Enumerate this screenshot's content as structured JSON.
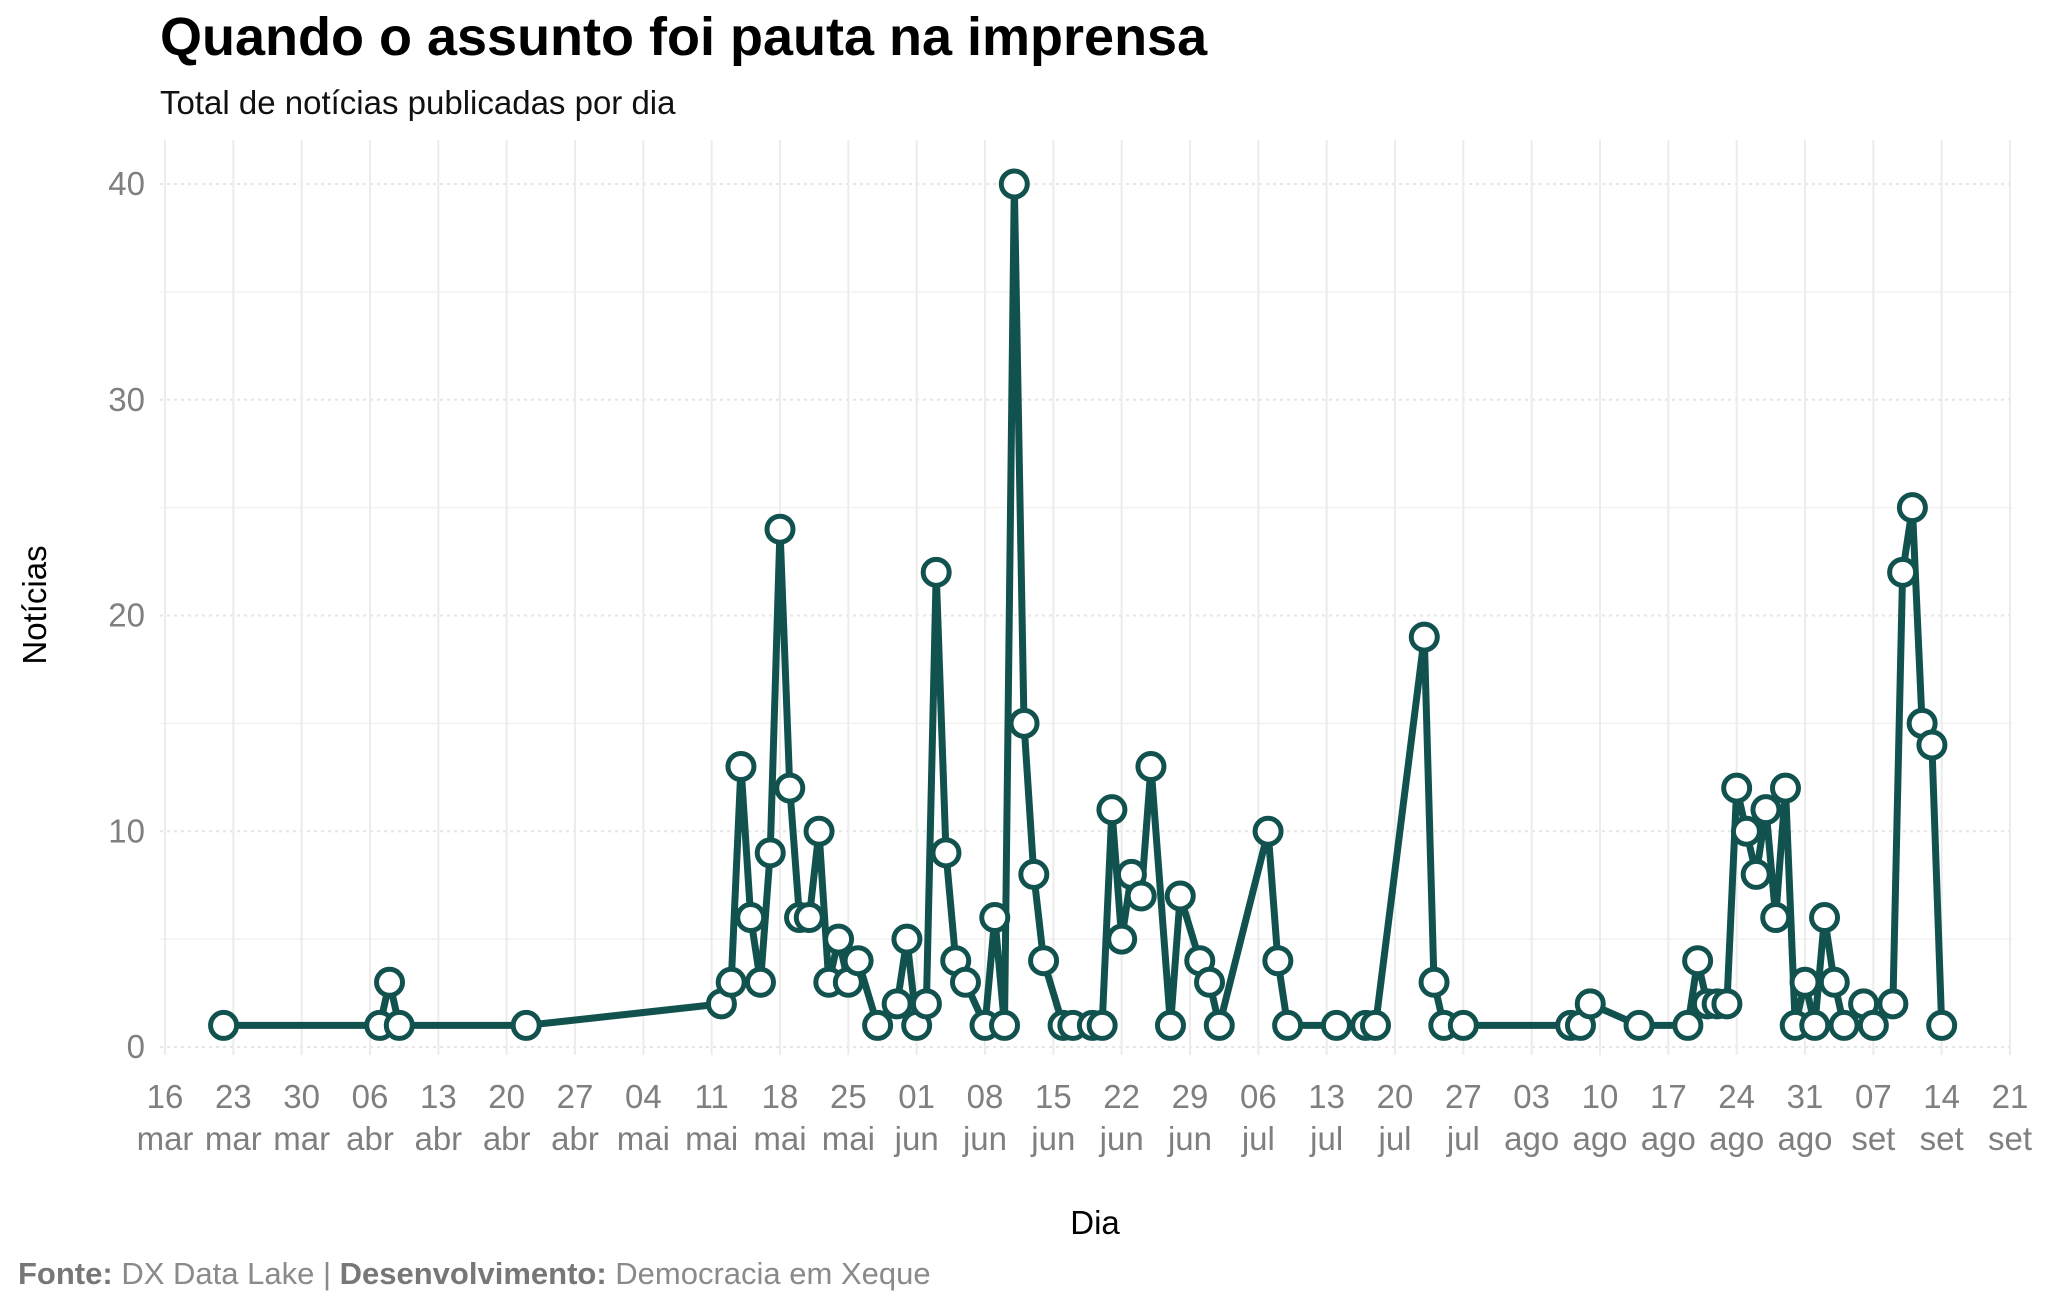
{
  "chart_data": {
    "type": "line",
    "title": "Quando o assunto foi pauta na imprensa",
    "subtitle": "Total de notícias publicadas por dia",
    "xlabel": "Dia",
    "ylabel": "Notícias",
    "ylim": [
      0,
      40
    ],
    "yticks": [
      0,
      10,
      20,
      30,
      40
    ],
    "xticks": [
      {
        "date": "2023-03-16",
        "day": "16",
        "month": "mar"
      },
      {
        "date": "2023-03-23",
        "day": "23",
        "month": "mar"
      },
      {
        "date": "2023-03-30",
        "day": "30",
        "month": "mar"
      },
      {
        "date": "2023-04-06",
        "day": "06",
        "month": "abr"
      },
      {
        "date": "2023-04-13",
        "day": "13",
        "month": "abr"
      },
      {
        "date": "2023-04-20",
        "day": "20",
        "month": "abr"
      },
      {
        "date": "2023-04-27",
        "day": "27",
        "month": "abr"
      },
      {
        "date": "2023-05-04",
        "day": "04",
        "month": "mai"
      },
      {
        "date": "2023-05-11",
        "day": "11",
        "month": "mai"
      },
      {
        "date": "2023-05-18",
        "day": "18",
        "month": "mai"
      },
      {
        "date": "2023-05-25",
        "day": "25",
        "month": "mai"
      },
      {
        "date": "2023-06-01",
        "day": "01",
        "month": "jun"
      },
      {
        "date": "2023-06-08",
        "day": "08",
        "month": "jun"
      },
      {
        "date": "2023-06-15",
        "day": "15",
        "month": "jun"
      },
      {
        "date": "2023-06-22",
        "day": "22",
        "month": "jun"
      },
      {
        "date": "2023-06-29",
        "day": "29",
        "month": "jun"
      },
      {
        "date": "2023-07-06",
        "day": "06",
        "month": "jul"
      },
      {
        "date": "2023-07-13",
        "day": "13",
        "month": "jul"
      },
      {
        "date": "2023-07-20",
        "day": "20",
        "month": "jul"
      },
      {
        "date": "2023-07-27",
        "day": "27",
        "month": "jul"
      },
      {
        "date": "2023-08-03",
        "day": "03",
        "month": "ago"
      },
      {
        "date": "2023-08-10",
        "day": "10",
        "month": "ago"
      },
      {
        "date": "2023-08-17",
        "day": "17",
        "month": "ago"
      },
      {
        "date": "2023-08-24",
        "day": "24",
        "month": "ago"
      },
      {
        "date": "2023-08-31",
        "day": "31",
        "month": "ago"
      },
      {
        "date": "2023-09-07",
        "day": "07",
        "month": "set"
      },
      {
        "date": "2023-09-14",
        "day": "14",
        "month": "set"
      },
      {
        "date": "2023-09-21",
        "day": "21",
        "month": "set"
      }
    ],
    "points": [
      {
        "x": "2023-03-22",
        "y": 1
      },
      {
        "x": "2023-04-07",
        "y": 1
      },
      {
        "x": "2023-04-08",
        "y": 3
      },
      {
        "x": "2023-04-09",
        "y": 1
      },
      {
        "x": "2023-04-22",
        "y": 1
      },
      {
        "x": "2023-05-12",
        "y": 2
      },
      {
        "x": "2023-05-13",
        "y": 3
      },
      {
        "x": "2023-05-14",
        "y": 13
      },
      {
        "x": "2023-05-15",
        "y": 6
      },
      {
        "x": "2023-05-16",
        "y": 3
      },
      {
        "x": "2023-05-17",
        "y": 9
      },
      {
        "x": "2023-05-18",
        "y": 24
      },
      {
        "x": "2023-05-19",
        "y": 12
      },
      {
        "x": "2023-05-20",
        "y": 6
      },
      {
        "x": "2023-05-21",
        "y": 6
      },
      {
        "x": "2023-05-22",
        "y": 10
      },
      {
        "x": "2023-05-23",
        "y": 3
      },
      {
        "x": "2023-05-24",
        "y": 5
      },
      {
        "x": "2023-05-25",
        "y": 3
      },
      {
        "x": "2023-05-26",
        "y": 4
      },
      {
        "x": "2023-05-28",
        "y": 1
      },
      {
        "x": "2023-05-30",
        "y": 2
      },
      {
        "x": "2023-05-31",
        "y": 5
      },
      {
        "x": "2023-06-01",
        "y": 1
      },
      {
        "x": "2023-06-02",
        "y": 2
      },
      {
        "x": "2023-06-03",
        "y": 22
      },
      {
        "x": "2023-06-04",
        "y": 9
      },
      {
        "x": "2023-06-05",
        "y": 4
      },
      {
        "x": "2023-06-06",
        "y": 3
      },
      {
        "x": "2023-06-08",
        "y": 1
      },
      {
        "x": "2023-06-09",
        "y": 6
      },
      {
        "x": "2023-06-10",
        "y": 1
      },
      {
        "x": "2023-06-11",
        "y": 40
      },
      {
        "x": "2023-06-12",
        "y": 15
      },
      {
        "x": "2023-06-13",
        "y": 8
      },
      {
        "x": "2023-06-14",
        "y": 4
      },
      {
        "x": "2023-06-16",
        "y": 1
      },
      {
        "x": "2023-06-17",
        "y": 1
      },
      {
        "x": "2023-06-19",
        "y": 1
      },
      {
        "x": "2023-06-20",
        "y": 1
      },
      {
        "x": "2023-06-21",
        "y": 11
      },
      {
        "x": "2023-06-22",
        "y": 5
      },
      {
        "x": "2023-06-23",
        "y": 8
      },
      {
        "x": "2023-06-24",
        "y": 7
      },
      {
        "x": "2023-06-25",
        "y": 13
      },
      {
        "x": "2023-06-27",
        "y": 1
      },
      {
        "x": "2023-06-28",
        "y": 7
      },
      {
        "x": "2023-06-30",
        "y": 4
      },
      {
        "x": "2023-07-01",
        "y": 3
      },
      {
        "x": "2023-07-02",
        "y": 1
      },
      {
        "x": "2023-07-07",
        "y": 10
      },
      {
        "x": "2023-07-08",
        "y": 4
      },
      {
        "x": "2023-07-09",
        "y": 1
      },
      {
        "x": "2023-07-14",
        "y": 1
      },
      {
        "x": "2023-07-17",
        "y": 1
      },
      {
        "x": "2023-07-18",
        "y": 1
      },
      {
        "x": "2023-07-23",
        "y": 19
      },
      {
        "x": "2023-07-24",
        "y": 3
      },
      {
        "x": "2023-07-25",
        "y": 1
      },
      {
        "x": "2023-07-27",
        "y": 1
      },
      {
        "x": "2023-08-07",
        "y": 1
      },
      {
        "x": "2023-08-08",
        "y": 1
      },
      {
        "x": "2023-08-09",
        "y": 2
      },
      {
        "x": "2023-08-14",
        "y": 1
      },
      {
        "x": "2023-08-19",
        "y": 1
      },
      {
        "x": "2023-08-20",
        "y": 4
      },
      {
        "x": "2023-08-21",
        "y": 2
      },
      {
        "x": "2023-08-22",
        "y": 2
      },
      {
        "x": "2023-08-23",
        "y": 2
      },
      {
        "x": "2023-08-24",
        "y": 12
      },
      {
        "x": "2023-08-25",
        "y": 10
      },
      {
        "x": "2023-08-26",
        "y": 8
      },
      {
        "x": "2023-08-27",
        "y": 11
      },
      {
        "x": "2023-08-28",
        "y": 6
      },
      {
        "x": "2023-08-29",
        "y": 12
      },
      {
        "x": "2023-08-30",
        "y": 1
      },
      {
        "x": "2023-08-31",
        "y": 3
      },
      {
        "x": "2023-09-01",
        "y": 1
      },
      {
        "x": "2023-09-02",
        "y": 6
      },
      {
        "x": "2023-09-03",
        "y": 3
      },
      {
        "x": "2023-09-04",
        "y": 1
      },
      {
        "x": "2023-09-06",
        "y": 2
      },
      {
        "x": "2023-09-07",
        "y": 1
      },
      {
        "x": "2023-09-09",
        "y": 2
      },
      {
        "x": "2023-09-10",
        "y": 22
      },
      {
        "x": "2023-09-11",
        "y": 25
      },
      {
        "x": "2023-09-12",
        "y": 15
      },
      {
        "x": "2023-09-13",
        "y": 14
      },
      {
        "x": "2023-09-14",
        "y": 1
      }
    ],
    "line_color": "#11524f",
    "marker_fill": "#ffffff",
    "grid": true
  },
  "caption": {
    "source_label": "Fonte:",
    "source_value": "DX Data Lake",
    "separator": "|",
    "dev_label": "Desenvolvimento:",
    "dev_value": "Democracia em Xeque"
  }
}
